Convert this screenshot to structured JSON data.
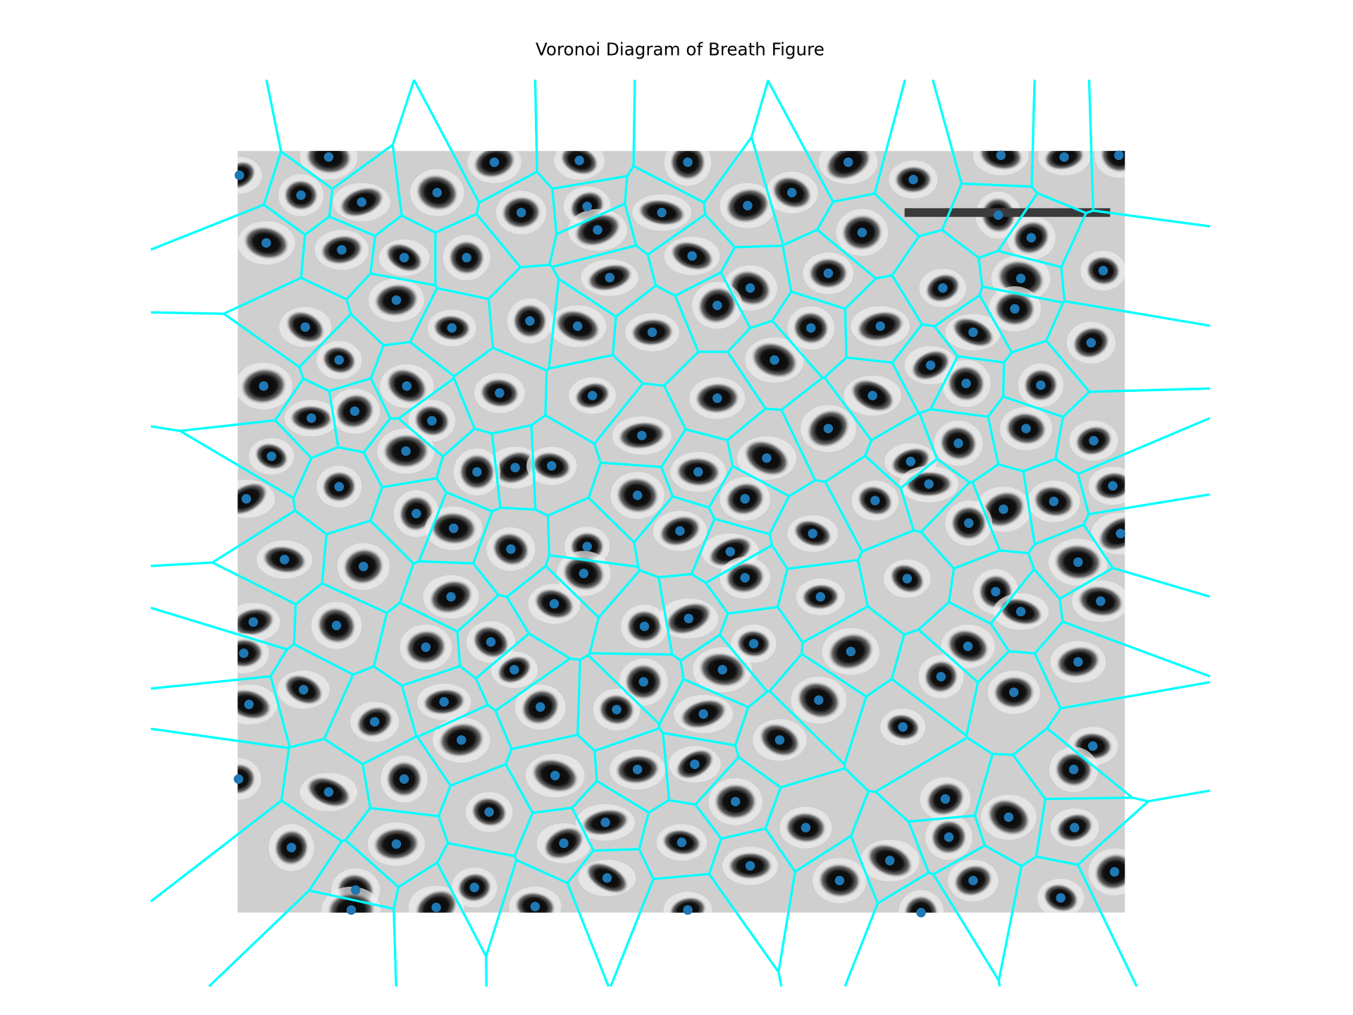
{
  "chart_data": {
    "type": "voronoi",
    "title": "Voronoi Diagram of Breath Figure",
    "point_color": "#1f77b4",
    "edge_color": "#00ffff",
    "xlim": [
      0,
      1023
    ],
    "ylim": [
      0,
      878
    ],
    "x": [
      2,
      105,
      296,
      394,
      519,
      704,
      880,
      953,
      1016,
      73,
      143,
      230,
      327,
      403,
      489,
      588,
      639,
      779,
      877,
      33,
      120,
      192,
      264,
      415,
      524,
      720,
      915,
      998,
      429,
      591,
      681,
      813,
      903,
      183,
      78,
      247,
      337,
      392,
      478,
      553,
      661,
      741,
      848,
      896,
      984,
      117,
      30,
      195,
      302,
      409,
      619,
      553,
      799,
      840,
      926,
      732,
      85,
      135,
      224,
      466,
      681,
      909,
      987,
      39,
      194,
      320,
      362,
      276,
      610,
      531,
      776,
      831,
      117,
      10,
      461,
      585,
      735,
      797,
      883,
      941,
      1009,
      206,
      249,
      510,
      663,
      843,
      1018,
      54,
      145,
      315,
      403,
      568,
      399,
      585,
      772,
      969,
      246,
      365,
      672,
      874,
      995,
      18,
      114,
      469,
      520,
      903,
      217,
      292,
      595,
      707,
      842,
      7,
      319,
      559,
      969,
      76,
      468,
      811,
      13,
      238,
      349,
      437,
      537,
      670,
      895,
      158,
      767,
      258,
      625,
      986,
      192,
      366,
      461,
      527,
      964,
      1,
      105,
      574,
      816,
      290,
      424,
      889,
      655,
      965,
      62,
      183,
      376,
      512,
      820,
      752,
      591,
      1011,
      136,
      273,
      426,
      694,
      848,
      949,
      131,
      229,
      343,
      519,
      788
    ],
    "y": [
      28,
      7,
      13,
      11,
      13,
      13,
      5,
      7,
      5,
      51,
      59,
      48,
      71,
      64,
      71,
      63,
      48,
      33,
      74,
      106,
      114,
      123,
      123,
      91,
      121,
      94,
      100,
      138,
      146,
      158,
      141,
      158,
      147,
      172,
      203,
      204,
      196,
      202,
      209,
      178,
      204,
      202,
      209,
      182,
      221,
      241,
      271,
      271,
      279,
      282,
      241,
      285,
      247,
      268,
      270,
      282,
      308,
      300,
      311,
      328,
      320,
      320,
      334,
      352,
      346,
      365,
      363,
      370,
      354,
      370,
      358,
      337,
      387,
      401,
      397,
      401,
      403,
      384,
      413,
      404,
      386,
      418,
      435,
      438,
      441,
      429,
      441,
      471,
      479,
      459,
      456,
      462,
      487,
      492,
      493,
      474,
      514,
      522,
      514,
      508,
      519,
      543,
      547,
      548,
      539,
      531,
      572,
      566,
      568,
      577,
      571,
      579,
      598,
      598,
      589,
      621,
      612,
      606,
      638,
      635,
      641,
      644,
      649,
      633,
      624,
      658,
      664,
      679,
      679,
      686,
      724,
      720,
      713,
      707,
      713,
      724,
      739,
      750,
      747,
      762,
      774,
      768,
      780,
      780,
      803,
      799,
      798,
      797,
      791,
      818,
      824,
      831,
      852,
      849,
      838,
      841,
      841,
      861,
      875,
      872,
      871,
      875,
      878
    ]
  }
}
